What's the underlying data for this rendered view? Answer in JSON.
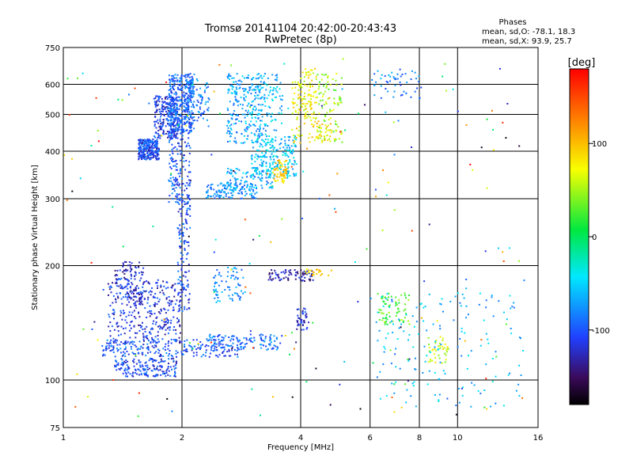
{
  "chart_data": {
    "type": "scatter",
    "title": "Tromsø 20141104 20:42:00-20:43:43",
    "subtitle": "RwPretec (8p)",
    "xlabel": "Frequency [MHz]",
    "ylabel": "Stationary phase Virtual Height [km]",
    "x_scale": "log",
    "y_scale": "log",
    "xlim": [
      1,
      16
    ],
    "ylim": [
      75,
      750
    ],
    "x_ticks": [
      1,
      2,
      4,
      6,
      8,
      10,
      16
    ],
    "x_tick_labels": [
      "1",
      "2",
      "4",
      "6",
      "8",
      "10",
      "16"
    ],
    "y_ticks": [
      75,
      100,
      200,
      300,
      400,
      500,
      600,
      750
    ],
    "y_tick_labels": [
      "75",
      "100",
      "200",
      "300",
      "400",
      "500",
      "600",
      "750"
    ],
    "grid": true,
    "stats": {
      "heading": "Phases",
      "line_o": "mean, sd,O: -78.1, 18.3",
      "line_x": "mean, sd,X:  93.9, 25.7"
    },
    "colorbar": {
      "label": "[deg]",
      "range": [
        -180,
        180
      ],
      "ticks": [
        100,
        0,
        -100
      ],
      "tick_labels": [
        "100",
        "0",
        "-100"
      ],
      "colormap": "rainbow"
    },
    "clusters": [
      {
        "f": [
          1.55,
          1.75
        ],
        "h": [
          380,
          430
        ],
        "phase": -105,
        "n": 260
      },
      {
        "f": [
          1.7,
          1.95
        ],
        "h": [
          430,
          560
        ],
        "phase": -110,
        "n": 220
      },
      {
        "f": [
          1.85,
          2.15
        ],
        "h": [
          450,
          640
        ],
        "phase": -95,
        "n": 380
      },
      {
        "f": [
          1.85,
          2.1
        ],
        "h": [
          290,
          450
        ],
        "phase": -100,
        "n": 150
      },
      {
        "f": [
          1.95,
          2.1
        ],
        "h": [
          150,
          300
        ],
        "phase": -100,
        "n": 120
      },
      {
        "f": [
          2.05,
          2.35
        ],
        "h": [
          480,
          620
        ],
        "phase": -85,
        "n": 80
      },
      {
        "f": [
          2.3,
          3.1
        ],
        "h": [
          300,
          330
        ],
        "phase": -75,
        "n": 130
      },
      {
        "f": [
          2.6,
          3.4
        ],
        "h": [
          320,
          360
        ],
        "phase": -70,
        "n": 90
      },
      {
        "f": [
          2.6,
          3.2
        ],
        "h": [
          420,
          640
        ],
        "phase": -70,
        "n": 220
      },
      {
        "f": [
          3.0,
          3.6
        ],
        "h": [
          440,
          640
        ],
        "phase": -60,
        "n": 120
      },
      {
        "f": [
          3.0,
          3.9
        ],
        "h": [
          340,
          440
        ],
        "phase": -55,
        "n": 220
      },
      {
        "f": [
          3.4,
          3.7
        ],
        "h": [
          330,
          380
        ],
        "phase": 95,
        "n": 60
      },
      {
        "f": [
          3.8,
          4.4
        ],
        "h": [
          480,
          660
        ],
        "phase": 70,
        "n": 120
      },
      {
        "f": [
          3.8,
          4.9
        ],
        "h": [
          420,
          480
        ],
        "phase": 85,
        "n": 50
      },
      {
        "f": [
          4.4,
          5.1
        ],
        "h": [
          420,
          640
        ],
        "phase": 45,
        "n": 100
      },
      {
        "f": [
          1.35,
          1.6
        ],
        "h": [
          160,
          205
        ],
        "phase": -120,
        "n": 110
      },
      {
        "f": [
          1.3,
          2.0
        ],
        "h": [
          125,
          185
        ],
        "phase": -115,
        "n": 330
      },
      {
        "f": [
          1.25,
          2.8
        ],
        "h": [
          115,
          128
        ],
        "phase": -100,
        "n": 240
      },
      {
        "f": [
          1.35,
          1.95
        ],
        "h": [
          102,
          114
        ],
        "phase": -105,
        "n": 170
      },
      {
        "f": [
          2.3,
          3.6
        ],
        "h": [
          120,
          132
        ],
        "phase": -90,
        "n": 110
      },
      {
        "f": [
          2.4,
          2.9
        ],
        "h": [
          160,
          200
        ],
        "phase": -75,
        "n": 70
      },
      {
        "f": [
          3.3,
          4.3
        ],
        "h": [
          182,
          195
        ],
        "phase": -130,
        "n": 80
      },
      {
        "f": [
          4.1,
          4.8
        ],
        "h": [
          188,
          196
        ],
        "phase": 90,
        "n": 22
      },
      {
        "f": [
          3.9,
          4.2
        ],
        "h": [
          135,
          155
        ],
        "phase": -115,
        "n": 40
      },
      {
        "f": [
          6.2,
          7.6
        ],
        "h": [
          140,
          170
        ],
        "phase": 30,
        "n": 70
      },
      {
        "f": [
          8.4,
          9.5
        ],
        "h": [
          110,
          130
        ],
        "phase": 60,
        "n": 40
      },
      {
        "f": [
          6.0,
          8.2
        ],
        "h": [
          550,
          660
        ],
        "phase": -85,
        "n": 55
      },
      {
        "f": [
          6.0,
          14.5
        ],
        "h": [
          85,
          170
        ],
        "phase": -60,
        "n": 160
      },
      {
        "f": [
          1.0,
          15.0
        ],
        "h": [
          80,
          700
        ],
        "phase": 0,
        "n": 190
      }
    ]
  }
}
